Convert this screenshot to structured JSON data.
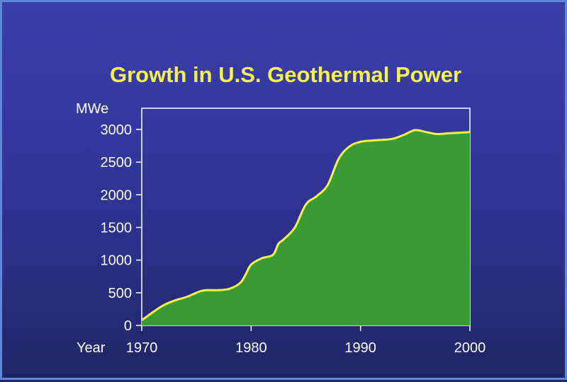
{
  "chart_data": {
    "type": "area",
    "title": "Growth in U.S. Geothermal Power",
    "ylabel": "MWe",
    "xlabel": "Year",
    "xlim": [
      1970,
      2000
    ],
    "ylim": [
      0,
      3000
    ],
    "x_ticks": [
      "1970",
      "1980",
      "1990",
      "2000"
    ],
    "y_ticks": [
      "0",
      "500",
      "1000",
      "1500",
      "2000",
      "2500",
      "3000"
    ],
    "grid": false,
    "colors": {
      "fill": "#3a9a34",
      "line": "#f2f24a",
      "text": "#ffffff",
      "title": "#f4f24a"
    },
    "series": [
      {
        "x": [
          1970,
          1971,
          1972,
          1973,
          1974,
          1975,
          1975.5,
          1976,
          1977,
          1978,
          1979,
          1979.5,
          1980,
          1981,
          1982,
          1982.5,
          1983,
          1984,
          1985,
          1986,
          1987,
          1988,
          1989,
          1990,
          1991,
          1992,
          1993,
          1994,
          1995,
          1996,
          1997,
          1998,
          1999,
          2000
        ],
        "y": [
          80,
          200,
          310,
          380,
          430,
          500,
          530,
          540,
          540,
          560,
          650,
          780,
          930,
          1030,
          1080,
          1250,
          1320,
          1500,
          1850,
          1980,
          2150,
          2550,
          2740,
          2810,
          2830,
          2840,
          2860,
          2920,
          2990,
          2960,
          2930,
          2940,
          2950,
          2960
        ]
      }
    ]
  }
}
